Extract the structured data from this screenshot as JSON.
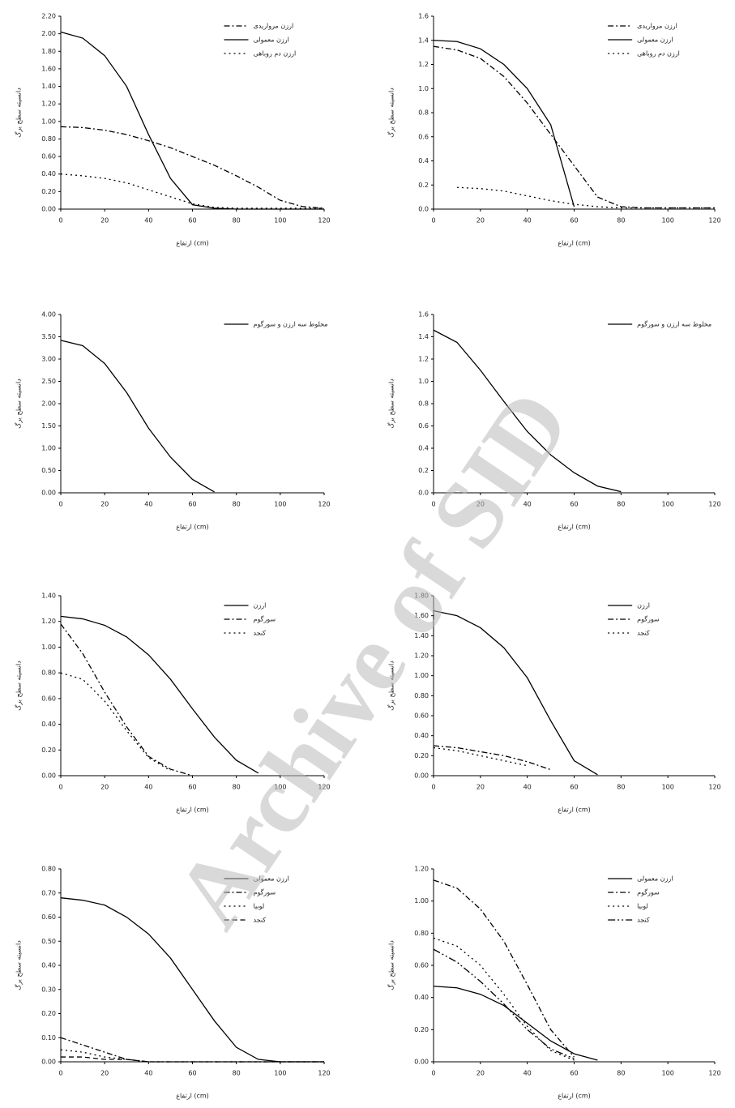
{
  "watermark": "Archive of SID",
  "chart_data": [
    {
      "type": "line",
      "x": [
        0,
        10,
        20,
        30,
        40,
        50,
        60,
        70,
        80,
        90,
        100,
        110,
        120
      ],
      "xlim": [
        0,
        120
      ],
      "xticks": [
        0,
        20,
        40,
        60,
        80,
        100,
        120
      ],
      "ylim": [
        0,
        2.2
      ],
      "yticks": [
        {
          "value": 0,
          "label": "0.00"
        },
        {
          "value": 0.2,
          "label": "0.20"
        },
        {
          "value": 0.4,
          "label": "0.40"
        },
        {
          "value": 0.6,
          "label": "0.60"
        },
        {
          "value": 0.8,
          "label": "0.80"
        },
        {
          "value": 1,
          "label": "1.00"
        },
        {
          "value": 1.2,
          "label": "1.20"
        },
        {
          "value": 1.4,
          "label": "1.40"
        },
        {
          "value": 1.6,
          "label": "1.60"
        },
        {
          "value": 1.8,
          "label": "1.80"
        },
        {
          "value": 2,
          "label": "2.00"
        },
        {
          "value": 2.2,
          "label": "2.20"
        }
      ],
      "xlabel": "ارتفاع (cm)",
      "ylabel": "دانسیته سطح برگ",
      "series": [
        {
          "name": "ارزن مرواریدی",
          "color": "#000000",
          "dash": "7 3 2 3",
          "values": [
            0.94,
            0.93,
            0.9,
            0.85,
            0.78,
            0.7,
            0.6,
            0.5,
            0.38,
            0.25,
            0.1,
            0.03,
            0.01
          ]
        },
        {
          "name": "ارزن معمولی",
          "color": "#000000",
          "dash": "",
          "values": [
            2.02,
            1.95,
            1.75,
            1.4,
            0.85,
            0.35,
            0.05,
            0.01,
            0,
            0,
            0,
            0,
            0
          ]
        },
        {
          "name": "ارزن دم روباهی",
          "color": "#000000",
          "dash": "2 4",
          "values": [
            0.4,
            0.38,
            0.35,
            0.3,
            0.22,
            0.14,
            0.06,
            0.02,
            0.01,
            0.01,
            0.01,
            0.01,
            0.01
          ]
        }
      ]
    },
    {
      "type": "line",
      "x": [
        0,
        10,
        20,
        30,
        40,
        50,
        60,
        70,
        80,
        90,
        100,
        110,
        120
      ],
      "xlim": [
        0,
        120
      ],
      "xticks": [
        0,
        20,
        40,
        60,
        80,
        100,
        120
      ],
      "ylim": [
        0,
        1.6
      ],
      "yticks": [
        {
          "value": 0,
          "label": "0.0"
        },
        0.2,
        0.4,
        0.6,
        0.8,
        {
          "value": 1,
          "label": "1.0"
        },
        1.2,
        1.4,
        1.6
      ],
      "xlabel": "ارتفاع (cm)",
      "ylabel": "دانسیته سطح برگ",
      "series": [
        {
          "name": "ارزن مرواریدی",
          "color": "#000000",
          "dash": "7 3 2 3",
          "values": [
            1.35,
            1.32,
            1.25,
            1.1,
            0.88,
            0.62,
            0.36,
            0.1,
            0.02,
            0.01,
            0.01,
            0.01,
            0.01
          ]
        },
        {
          "name": "ارزن معمولی",
          "color": "#000000",
          "dash": "",
          "values": [
            1.4,
            1.39,
            1.33,
            1.2,
            1.0,
            0.7,
            0.02,
            null,
            null,
            null,
            null,
            null,
            null
          ]
        },
        {
          "name": "ارزن دم روباهی",
          "color": "#000000",
          "dash": "2 4",
          "values": [
            null,
            0.18,
            0.17,
            0.15,
            0.11,
            0.07,
            0.04,
            0.02,
            0.01,
            0.01,
            0.01,
            0.01,
            0.01
          ]
        }
      ]
    },
    {
      "type": "line",
      "x": [
        0,
        10,
        20,
        30,
        40,
        50,
        60,
        70,
        80,
        90,
        100,
        110,
        120
      ],
      "xlim": [
        0,
        120
      ],
      "xticks": [
        0,
        20,
        40,
        60,
        80,
        100,
        120
      ],
      "ylim": [
        0,
        4
      ],
      "yticks": [
        {
          "value": 0,
          "label": "0.00"
        },
        {
          "value": 0.5,
          "label": "0.50"
        },
        {
          "value": 1,
          "label": "1.00"
        },
        {
          "value": 1.5,
          "label": "1.50"
        },
        {
          "value": 2,
          "label": "2.00"
        },
        {
          "value": 2.5,
          "label": "2.50"
        },
        {
          "value": 3,
          "label": "3.00"
        },
        {
          "value": 3.5,
          "label": "3.50"
        },
        {
          "value": 4,
          "label": "4.00"
        }
      ],
      "xlabel": "ارتفاع (cm)",
      "ylabel": "دانسیته سطح برگ",
      "series": [
        {
          "name": "مخلوط سه ارزن و سورگوم",
          "color": "#000000",
          "dash": "",
          "values": [
            3.42,
            3.3,
            2.9,
            2.25,
            1.45,
            0.8,
            0.3,
            0.02,
            null,
            null,
            null,
            null,
            null
          ]
        }
      ]
    },
    {
      "type": "line",
      "x": [
        0,
        10,
        20,
        30,
        40,
        50,
        60,
        70,
        80,
        90,
        100,
        110,
        120
      ],
      "xlim": [
        0,
        120
      ],
      "xticks": [
        0,
        20,
        40,
        60,
        80,
        100,
        120
      ],
      "ylim": [
        0,
        1.6
      ],
      "yticks": [
        {
          "value": 0,
          "label": "0.0"
        },
        0.2,
        0.4,
        0.6,
        0.8,
        {
          "value": 1,
          "label": "1.0"
        },
        1.2,
        1.4,
        1.6
      ],
      "xlabel": "ارتفاع (cm)",
      "ylabel": "دانسیته سطح برگ",
      "series": [
        {
          "name": "مخلوط سه ارزن و سورگوم",
          "color": "#000000",
          "dash": "",
          "values": [
            1.46,
            1.35,
            1.1,
            0.82,
            0.55,
            0.34,
            0.18,
            0.06,
            0.01,
            null,
            null,
            null,
            null
          ]
        }
      ]
    },
    {
      "type": "line",
      "x": [
        0,
        10,
        20,
        30,
        40,
        50,
        60,
        70,
        80,
        90,
        100,
        110,
        120
      ],
      "xlim": [
        0,
        120
      ],
      "xticks": [
        0,
        20,
        40,
        60,
        80,
        100,
        120
      ],
      "ylim": [
        0,
        1.4
      ],
      "yticks": [
        {
          "value": 0,
          "label": "0.00"
        },
        {
          "value": 0.2,
          "label": "0.20"
        },
        {
          "value": 0.4,
          "label": "0.40"
        },
        {
          "value": 0.6,
          "label": "0.60"
        },
        {
          "value": 0.8,
          "label": "0.80"
        },
        {
          "value": 1,
          "label": "1.00"
        },
        {
          "value": 1.2,
          "label": "1.20"
        },
        {
          "value": 1.4,
          "label": "1.40"
        }
      ],
      "xlabel": "ارتفاع (cm)",
      "ylabel": "دانسیته سطح برگ",
      "series": [
        {
          "name": "ارزن",
          "color": "#000000",
          "dash": "",
          "values": [
            1.24,
            1.22,
            1.17,
            1.08,
            0.94,
            0.75,
            0.52,
            0.3,
            0.12,
            0.02,
            null,
            null,
            null
          ]
        },
        {
          "name": "سورگوم",
          "color": "#000000",
          "dash": "7 3 2 3",
          "values": [
            1.18,
            0.95,
            0.65,
            0.38,
            0.15,
            0.05,
            0,
            null,
            null,
            null,
            null,
            null,
            null
          ]
        },
        {
          "name": "کنجد",
          "color": "#000000",
          "dash": "2 4",
          "values": [
            0.8,
            0.75,
            0.58,
            0.35,
            0.14,
            0.04,
            null,
            null,
            null,
            null,
            null,
            null,
            null
          ]
        }
      ]
    },
    {
      "type": "line",
      "x": [
        0,
        10,
        20,
        30,
        40,
        50,
        60,
        70,
        80,
        90,
        100,
        110,
        120
      ],
      "xlim": [
        0,
        120
      ],
      "xticks": [
        0,
        20,
        40,
        60,
        80,
        100,
        120
      ],
      "ylim": [
        0,
        1.8
      ],
      "yticks": [
        {
          "value": 0,
          "label": "0.00"
        },
        {
          "value": 0.2,
          "label": "0.20"
        },
        {
          "value": 0.4,
          "label": "0.40"
        },
        {
          "value": 0.6,
          "label": "0.60"
        },
        {
          "value": 0.8,
          "label": "0.80"
        },
        {
          "value": 1,
          "label": "1.00"
        },
        {
          "value": 1.2,
          "label": "1.20"
        },
        {
          "value": 1.4,
          "label": "1.40"
        },
        {
          "value": 1.6,
          "label": "1.60"
        },
        {
          "value": 1.8,
          "label": "1.80"
        }
      ],
      "xlabel": "ارتفاع (cm)",
      "ylabel": "دانسیته سطح برگ",
      "series": [
        {
          "name": "ارزن",
          "color": "#000000",
          "dash": "",
          "values": [
            1.65,
            1.6,
            1.48,
            1.28,
            0.98,
            0.55,
            0.15,
            0.01,
            null,
            null,
            null,
            null,
            null
          ]
        },
        {
          "name": "سورگوم",
          "color": "#000000",
          "dash": "7 3 2 3",
          "values": [
            0.3,
            0.28,
            0.24,
            0.2,
            0.14,
            0.06,
            null,
            null,
            null,
            null,
            null,
            null,
            null
          ]
        },
        {
          "name": "کنجد",
          "color": "#000000",
          "dash": "2 4",
          "values": [
            0.28,
            0.25,
            0.2,
            0.15,
            0.1,
            null,
            null,
            null,
            null,
            null,
            null,
            null,
            null
          ]
        }
      ]
    },
    {
      "type": "line",
      "x": [
        0,
        10,
        20,
        30,
        40,
        50,
        60,
        70,
        80,
        90,
        100,
        110,
        120
      ],
      "xlim": [
        0,
        120
      ],
      "xticks": [
        0,
        20,
        40,
        60,
        80,
        100,
        120
      ],
      "ylim": [
        0,
        0.8
      ],
      "yticks": [
        {
          "value": 0,
          "label": "0.00"
        },
        {
          "value": 0.1,
          "label": "0.10"
        },
        {
          "value": 0.2,
          "label": "0.20"
        },
        {
          "value": 0.3,
          "label": "0.30"
        },
        {
          "value": 0.4,
          "label": "0.40"
        },
        {
          "value": 0.5,
          "label": "0.50"
        },
        {
          "value": 0.6,
          "label": "0.60"
        },
        {
          "value": 0.7,
          "label": "0.70"
        },
        {
          "value": 0.8,
          "label": "0.80"
        }
      ],
      "xlabel": "ارتفاع (cm)",
      "ylabel": "دانسیته سطح برگ",
      "series": [
        {
          "name": "ارزن معمولی",
          "color": "#000000",
          "dash": "",
          "values": [
            0.68,
            0.67,
            0.65,
            0.6,
            0.53,
            0.43,
            0.3,
            0.17,
            0.06,
            0.01,
            0,
            0,
            0
          ]
        },
        {
          "name": "سورگوم",
          "color": "#000000",
          "dash": "7 3 2 3",
          "values": [
            0.1,
            0.07,
            0.04,
            0.01,
            0,
            0,
            0,
            0,
            0,
            0,
            0,
            0,
            0
          ]
        },
        {
          "name": "لوبیا",
          "color": "#000000",
          "dash": "2 4",
          "values": [
            0.05,
            0.04,
            0.02,
            0.01,
            0,
            0,
            0,
            0,
            0,
            0,
            0,
            0,
            0
          ]
        },
        {
          "name": "کنجد",
          "color": "#000000",
          "dash": "6 4",
          "values": [
            0.02,
            0.02,
            0.01,
            0.01,
            0,
            0,
            0,
            0,
            0,
            0,
            0,
            0,
            0
          ]
        }
      ]
    },
    {
      "type": "line",
      "x": [
        0,
        10,
        20,
        30,
        40,
        50,
        60,
        70,
        80,
        90,
        100,
        110,
        120
      ],
      "xlim": [
        0,
        120
      ],
      "xticks": [
        0,
        20,
        40,
        60,
        80,
        100,
        120
      ],
      "ylim": [
        0,
        1.2
      ],
      "yticks": [
        {
          "value": 0,
          "label": "0.00"
        },
        {
          "value": 0.2,
          "label": "0.20"
        },
        {
          "value": 0.4,
          "label": "0.40"
        },
        {
          "value": 0.6,
          "label": "0.60"
        },
        {
          "value": 0.8,
          "label": "0.80"
        },
        {
          "value": 1,
          "label": "1.00"
        },
        {
          "value": 1.2,
          "label": "1.20"
        }
      ],
      "xlabel": "ارتفاع (cm)",
      "ylabel": "دانسیته سطح برگ",
      "series": [
        {
          "name": "ارزن معمولی",
          "color": "#000000",
          "dash": "",
          "values": [
            0.47,
            0.46,
            0.42,
            0.35,
            0.24,
            0.13,
            0.05,
            0.01,
            null,
            null,
            null,
            null,
            null
          ]
        },
        {
          "name": "سورگوم",
          "color": "#000000",
          "dash": "7 3 2 3",
          "values": [
            1.13,
            1.08,
            0.95,
            0.75,
            0.48,
            0.2,
            0.03,
            null,
            null,
            null,
            null,
            null,
            null
          ]
        },
        {
          "name": "لوبیا",
          "color": "#000000",
          "dash": "2 4",
          "values": [
            0.77,
            0.72,
            0.6,
            0.42,
            0.22,
            0.07,
            0.01,
            null,
            null,
            null,
            null,
            null,
            null
          ]
        },
        {
          "name": "کنجد",
          "color": "#000000",
          "dash": "9 3 2 3 2 3",
          "values": [
            0.7,
            0.62,
            0.5,
            0.36,
            0.2,
            0.08,
            0.02,
            null,
            null,
            null,
            null,
            null,
            null
          ]
        }
      ]
    }
  ]
}
